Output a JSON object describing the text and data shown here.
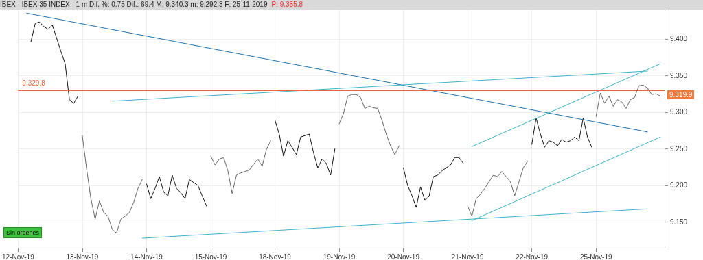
{
  "chart_data": {
    "type": "line",
    "title": "IBEX - IBEX 35 INDEX - 1 m  Dif. %: 0.75  Dif.: 69.4  M: 9.340.3  m: 9.292.3  F: 25-11-2019",
    "subtitle": "P: 9.355.8",
    "categories": [
      "12-Nov-19",
      null,
      null,
      null,
      null,
      null,
      null,
      null,
      null,
      null,
      null,
      null,
      null,
      null,
      null,
      "13-Nov-19",
      null,
      null,
      null,
      null,
      null,
      null,
      null,
      null,
      null,
      null,
      null,
      null,
      null,
      null,
      "14-Nov-19",
      null,
      null,
      null,
      null,
      null,
      null,
      null,
      null,
      null,
      null,
      null,
      null,
      null,
      null,
      "15-Nov-19",
      null,
      null,
      null,
      null,
      null,
      null,
      null,
      null,
      null,
      null,
      null,
      null,
      null,
      null,
      "18-Nov-19",
      null,
      null,
      null,
      null,
      null,
      null,
      null,
      null,
      null,
      null,
      null,
      null,
      null,
      null,
      "19-Nov-19",
      null,
      null,
      null,
      null,
      null,
      null,
      null,
      null,
      null,
      null,
      null,
      null,
      null,
      null,
      "20-Nov-19",
      null,
      null,
      null,
      null,
      null,
      null,
      null,
      null,
      null,
      null,
      null,
      null,
      null,
      null,
      "21-Nov-19",
      null,
      null,
      null,
      null,
      null,
      null,
      null,
      null,
      null,
      null,
      null,
      null,
      null,
      null,
      "22-Nov-19",
      null,
      null,
      null,
      null,
      null,
      null,
      null,
      null,
      null,
      null,
      null,
      null,
      null,
      null,
      "25-Nov-19",
      null,
      null,
      null,
      null,
      null,
      null,
      null,
      null,
      null,
      null,
      null,
      null,
      null,
      null,
      null,
      null
    ],
    "ylim": [
      9115,
      9440
    ],
    "yticks": [
      {
        "value": 9150,
        "label": "9.150"
      },
      {
        "value": 9200,
        "label": "9.200"
      },
      {
        "value": 9250,
        "label": "9.250"
      },
      {
        "value": 9300,
        "label": "9.300"
      },
      {
        "value": 9350,
        "label": "9.350"
      },
      {
        "value": 9400,
        "label": "9.400"
      }
    ],
    "grid": true,
    "marker": "none",
    "line_style": "solid",
    "ref_lines": [
      {
        "axis": "y",
        "value": 9329.8,
        "label": "9.329.8",
        "color": "#e8663c"
      }
    ],
    "annotations": [
      "9.319.9",
      "Sin órdenes"
    ],
    "series": [
      {
        "color": "#111111",
        "values": [
          null,
          null,
          null,
          9396,
          9421,
          9423,
          9417,
          9413,
          9419,
          9401,
          9383,
          9366,
          9317,
          9312,
          9322,
          null,
          null,
          null,
          null,
          null,
          null,
          null,
          null,
          null,
          null,
          null,
          null,
          null,
          null,
          null,
          9202,
          9182,
          9196,
          9212,
          9191,
          9186,
          9214,
          9196,
          9190,
          9182,
          9208,
          9204,
          9200,
          9186,
          9172,
          null,
          null,
          null,
          null,
          null,
          null,
          null,
          null,
          null,
          null,
          null,
          null,
          null,
          null,
          null,
          9289,
          9270,
          9240,
          9261,
          9252,
          9242,
          9266,
          9268,
          9270,
          9245,
          9224,
          9236,
          9230,
          9214,
          9250,
          null,
          null,
          null,
          null,
          null,
          null,
          null,
          null,
          null,
          null,
          null,
          null,
          null,
          null,
          null,
          9224,
          9200,
          9186,
          9170,
          9198,
          9180,
          9185,
          9212,
          9214,
          9220,
          9224,
          9228,
          9238,
          9238,
          9230,
          null,
          null,
          null,
          null,
          null,
          null,
          null,
          null,
          null,
          null,
          null,
          null,
          null,
          null,
          null,
          9256,
          9292,
          9270,
          9252,
          9261,
          9259,
          9254,
          9263,
          9259,
          9261,
          9266,
          9261,
          9292,
          9266,
          9252,
          null,
          null,
          null,
          null,
          null,
          null,
          null,
          null,
          null,
          null,
          null,
          null,
          null,
          null,
          null,
          null,
          null
        ]
      },
      {
        "color": "#666666",
        "values": [
          null,
          null,
          null,
          null,
          null,
          null,
          null,
          null,
          null,
          null,
          null,
          null,
          null,
          null,
          null,
          9268,
          9223,
          9182,
          9154,
          9179,
          9163,
          9158,
          9140,
          9135,
          9154,
          9158,
          9163,
          9177,
          9196,
          9208,
          null,
          null,
          null,
          null,
          null,
          null,
          null,
          null,
          null,
          null,
          null,
          null,
          null,
          null,
          null,
          9240,
          9228,
          9236,
          9238,
          9220,
          9189,
          9214,
          9217,
          9219,
          9221,
          9229,
          9236,
          9226,
          9249,
          9261,
          null,
          null,
          null,
          null,
          null,
          null,
          null,
          null,
          null,
          null,
          null,
          null,
          null,
          null,
          null,
          9284,
          9298,
          9322,
          9324,
          9324,
          9320,
          9305,
          9308,
          9306,
          9305,
          9289,
          9270,
          9254,
          9242,
          9254,
          null,
          null,
          null,
          null,
          null,
          null,
          null,
          null,
          null,
          null,
          null,
          null,
          null,
          null,
          null,
          9172,
          9158,
          9182,
          9188,
          9196,
          9205,
          9214,
          9212,
          9219,
          9212,
          9205,
          9186,
          9205,
          9224,
          9233,
          null,
          null,
          null,
          null,
          null,
          null,
          null,
          null,
          null,
          null,
          null,
          null,
          null,
          null,
          null,
          9294,
          9326,
          9312,
          9322,
          9308,
          9317,
          9314,
          9305,
          9317,
          9320,
          9336,
          9337,
          9333,
          9324,
          9325,
          9322,
          null
        ]
      },
      {
        "color": "#1f6fa8",
        "values": [
          null,
          null,
          9435,
          null,
          null,
          null,
          null,
          null,
          null,
          null,
          null,
          null,
          null,
          null,
          null,
          null,
          null,
          null,
          null,
          null,
          null,
          null,
          null,
          null,
          null,
          null,
          null,
          null,
          null,
          null,
          null,
          null,
          null,
          null,
          null,
          null,
          null,
          null,
          null,
          null,
          null,
          null,
          null,
          null,
          null,
          null,
          null,
          null,
          null,
          null,
          null,
          null,
          null,
          null,
          null,
          null,
          null,
          null,
          null,
          null,
          null,
          null,
          null,
          null,
          null,
          null,
          null,
          null,
          null,
          null,
          null,
          null,
          null,
          null,
          null,
          null,
          null,
          null,
          null,
          null,
          null,
          null,
          null,
          null,
          null,
          null,
          null,
          null,
          null,
          null,
          null,
          null,
          null,
          null,
          null,
          null,
          null,
          null,
          null,
          null,
          null,
          null,
          null,
          null,
          null,
          null,
          null,
          null,
          null,
          null,
          null,
          null,
          null,
          null,
          null,
          null,
          null,
          null,
          null,
          null,
          null,
          null,
          null,
          null,
          null,
          null,
          null,
          null,
          null,
          null,
          null,
          null,
          null,
          null,
          null,
          null,
          null,
          null,
          null,
          null,
          null,
          null,
          null,
          null,
          null,
          null,
          null,
          9273,
          null,
          null,
          null,
          null
        ]
      },
      {
        "color": "#3bb3c9",
        "values": [
          null,
          null,
          null,
          null,
          null,
          null,
          null,
          null,
          null,
          null,
          null,
          null,
          null,
          null,
          null,
          null,
          null,
          null,
          null,
          null,
          null,
          null,
          9315,
          null,
          null,
          null,
          null,
          null,
          null,
          null,
          null,
          null,
          null,
          null,
          null,
          null,
          null,
          null,
          null,
          null,
          null,
          null,
          null,
          null,
          null,
          null,
          null,
          null,
          null,
          null,
          null,
          null,
          null,
          null,
          null,
          null,
          null,
          null,
          null,
          null,
          null,
          null,
          null,
          null,
          null,
          null,
          null,
          null,
          null,
          null,
          null,
          null,
          null,
          null,
          null,
          null,
          null,
          null,
          null,
          null,
          null,
          null,
          null,
          null,
          null,
          null,
          null,
          null,
          null,
          null,
          null,
          null,
          null,
          null,
          null,
          null,
          null,
          null,
          null,
          null,
          null,
          null,
          null,
          null,
          null,
          null,
          null,
          null,
          null,
          null,
          null,
          null,
          null,
          null,
          null,
          null,
          null,
          null,
          null,
          null,
          null,
          null,
          null,
          null,
          null,
          null,
          null,
          null,
          null,
          null,
          null,
          null,
          null,
          null,
          null,
          null,
          null,
          null,
          null,
          null,
          null,
          null,
          null,
          null,
          null,
          null,
          null,
          9356,
          null,
          null,
          null,
          null
        ]
      },
      {
        "color": "#3bb3c9",
        "values": [
          null,
          null,
          null,
          null,
          null,
          null,
          null,
          null,
          null,
          null,
          null,
          null,
          null,
          null,
          null,
          null,
          null,
          null,
          null,
          null,
          null,
          null,
          null,
          null,
          null,
          null,
          null,
          null,
          null,
          null,
          null,
          null,
          null,
          null,
          null,
          null,
          null,
          null,
          null,
          null,
          null,
          null,
          null,
          null,
          null,
          null,
          null,
          null,
          null,
          null,
          null,
          null,
          null,
          null,
          null,
          null,
          null,
          null,
          null,
          null,
          null,
          null,
          null,
          null,
          null,
          null,
          null,
          null,
          null,
          null,
          null,
          null,
          null,
          null,
          null,
          null,
          null,
          null,
          null,
          null,
          null,
          null,
          null,
          null,
          null,
          null,
          null,
          null,
          null,
          null,
          null,
          null,
          null,
          null,
          null,
          null,
          null,
          null,
          null,
          null,
          null,
          null,
          null,
          null,
          null,
          null,
          9253,
          null,
          null,
          null,
          null,
          null,
          null,
          null,
          null,
          null,
          null,
          null,
          null,
          null,
          null,
          null,
          null,
          null,
          null,
          null,
          null,
          null,
          null,
          null,
          null,
          null,
          null,
          null,
          null,
          null,
          null,
          null,
          null,
          null,
          null,
          null,
          null,
          null,
          null,
          null,
          null,
          null,
          null,
          null,
          9366,
          null
        ]
      },
      {
        "color": "#3bb3c9",
        "values": [
          null,
          null,
          null,
          null,
          null,
          null,
          null,
          null,
          null,
          null,
          null,
          null,
          null,
          null,
          null,
          null,
          null,
          null,
          null,
          null,
          null,
          null,
          null,
          null,
          null,
          null,
          null,
          null,
          null,
          null,
          null,
          null,
          null,
          null,
          null,
          null,
          null,
          null,
          null,
          null,
          null,
          null,
          null,
          null,
          null,
          null,
          null,
          null,
          null,
          null,
          null,
          null,
          null,
          null,
          null,
          null,
          null,
          null,
          null,
          null,
          null,
          null,
          null,
          null,
          null,
          null,
          null,
          null,
          null,
          null,
          null,
          null,
          null,
          null,
          null,
          null,
          null,
          null,
          null,
          null,
          null,
          null,
          null,
          null,
          null,
          null,
          null,
          null,
          null,
          null,
          null,
          null,
          null,
          null,
          null,
          null,
          null,
          null,
          null,
          null,
          null,
          null,
          null,
          null,
          null,
          null,
          9152,
          null,
          null,
          null,
          null,
          null,
          null,
          null,
          null,
          null,
          null,
          null,
          null,
          null,
          null,
          null,
          null,
          null,
          null,
          null,
          null,
          null,
          null,
          null,
          null,
          null,
          null,
          null,
          null,
          null,
          null,
          null,
          null,
          null,
          null,
          null,
          null,
          null,
          null,
          null,
          null,
          null,
          null,
          null,
          9266,
          null
        ]
      },
      {
        "color": "#3bb3c9",
        "values": [
          null,
          null,
          null,
          null,
          null,
          null,
          null,
          null,
          null,
          null,
          null,
          null,
          null,
          null,
          null,
          null,
          null,
          null,
          null,
          null,
          null,
          null,
          null,
          null,
          null,
          null,
          null,
          null,
          null,
          9128,
          null,
          null,
          null,
          null,
          null,
          null,
          null,
          null,
          null,
          null,
          null,
          null,
          null,
          null,
          null,
          null,
          null,
          null,
          null,
          null,
          null,
          null,
          null,
          null,
          null,
          null,
          null,
          null,
          null,
          null,
          null,
          null,
          null,
          null,
          null,
          null,
          null,
          null,
          null,
          null,
          null,
          null,
          null,
          null,
          null,
          null,
          null,
          null,
          null,
          null,
          null,
          null,
          null,
          null,
          null,
          null,
          null,
          null,
          null,
          null,
          null,
          null,
          null,
          null,
          null,
          null,
          null,
          null,
          null,
          null,
          null,
          null,
          null,
          null,
          null,
          null,
          null,
          null,
          null,
          null,
          null,
          null,
          null,
          null,
          null,
          null,
          null,
          null,
          null,
          null,
          null,
          null,
          null,
          null,
          null,
          null,
          null,
          null,
          null,
          null,
          null,
          null,
          null,
          null,
          null,
          null,
          null,
          null,
          null,
          null,
          null,
          null,
          null,
          null,
          null,
          null,
          null,
          9168,
          null,
          null,
          null,
          null
        ]
      }
    ]
  }
}
